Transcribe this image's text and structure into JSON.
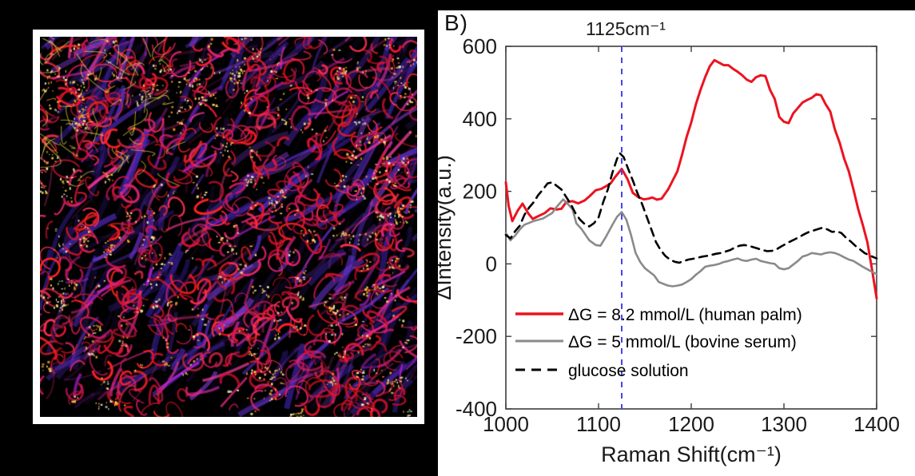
{
  "page": {
    "background": "#000000",
    "panel_label": "B)"
  },
  "microscopy_image": {
    "name": "skin-capillary-dark-field-image",
    "background": "#000000",
    "frame_color": "#ffffff",
    "purple_palette": [
      "#5a2ccc",
      "#6a35d8",
      "#4326b8",
      "#7e3bd4",
      "#3a1f9e",
      "#5530c8"
    ],
    "red_palette": [
      "#e41537",
      "#ff2222",
      "#cf1030",
      "#e0246e",
      "#c81858",
      "#ff3050",
      "#d51222"
    ],
    "magenta_palette": [
      "#d028a8",
      "#b41fd0",
      "#e33a8e",
      "#ff2e92"
    ],
    "yellow_palette": [
      "#ffefae",
      "#ffd94e",
      "#ffb52a",
      "#ff8c26",
      "#fff6d8",
      "#ffe36e"
    ]
  },
  "chart_data": {
    "type": "line",
    "annotation": {
      "text": "1125cm⁻¹",
      "x": 1125
    },
    "vline": {
      "x": 1125,
      "color": "#4545ee"
    },
    "xlabel": "Raman Shift(cm⁻¹)",
    "ylabel": "ΔIntensity(a.u.)",
    "xlim": [
      1000,
      1400
    ],
    "ylim": [
      -400,
      600
    ],
    "xticks": [
      1000,
      1100,
      1200,
      1300,
      1400
    ],
    "yticks": [
      -400,
      -200,
      0,
      200,
      400,
      600
    ],
    "grid": false,
    "legend_position": "inside-bottom-left",
    "axis_color": "#3d3d3d",
    "text_color": "#1a1a1a",
    "series": [
      {
        "name": "ΔG = 8.2 mmol/L (human palm)",
        "color": "#ec1320",
        "dash": "solid",
        "width": 3,
        "x": [
          1000,
          1003,
          1007,
          1013,
          1018,
          1024,
          1029,
          1036,
          1042,
          1048,
          1055,
          1060,
          1065,
          1072,
          1078,
          1085,
          1090,
          1097,
          1103,
          1108,
          1113,
          1118,
          1125,
          1131,
          1137,
          1143,
          1149,
          1154,
          1158,
          1163,
          1168,
          1175,
          1180,
          1185,
          1190,
          1195,
          1200,
          1205,
          1210,
          1215,
          1220,
          1225,
          1230,
          1235,
          1240,
          1245,
          1250,
          1255,
          1260,
          1265,
          1270,
          1275,
          1280,
          1285,
          1290,
          1295,
          1300,
          1305,
          1310,
          1315,
          1320,
          1325,
          1330,
          1335,
          1340,
          1345,
          1350,
          1355,
          1360,
          1365,
          1370,
          1375,
          1380,
          1385,
          1390,
          1395,
          1400
        ],
        "y": [
          225,
          160,
          118,
          148,
          166,
          140,
          124,
          133,
          140,
          153,
          150,
          152,
          170,
          173,
          167,
          175,
          186,
          203,
          207,
          214,
          222,
          240,
          262,
          235,
          196,
          184,
          178,
          180,
          183,
          177,
          180,
          205,
          230,
          255,
          300,
          350,
          390,
          440,
          480,
          515,
          545,
          562,
          555,
          548,
          548,
          538,
          530,
          520,
          508,
          502,
          515,
          520,
          518,
          480,
          455,
          405,
          392,
          388,
          415,
          430,
          445,
          452,
          458,
          468,
          465,
          440,
          420,
          370,
          335,
          290,
          255,
          205,
          152,
          108,
          60,
          -15,
          -95
        ]
      },
      {
        "name": "ΔG = 5 mmol/L (bovine serum)",
        "color": "#8a8a8a",
        "dash": "solid",
        "width": 2.6,
        "x": [
          1000,
          1005,
          1010,
          1015,
          1020,
          1030,
          1040,
          1050,
          1055,
          1062,
          1068,
          1072,
          1076,
          1082,
          1090,
          1097,
          1102,
          1108,
          1115,
          1120,
          1125,
          1130,
          1135,
          1140,
          1145,
          1150,
          1155,
          1160,
          1165,
          1170,
          1175,
          1180,
          1185,
          1190,
          1195,
          1200,
          1205,
          1210,
          1215,
          1220,
          1225,
          1230,
          1235,
          1240,
          1245,
          1250,
          1255,
          1260,
          1265,
          1270,
          1275,
          1280,
          1285,
          1290,
          1295,
          1300,
          1305,
          1310,
          1315,
          1320,
          1325,
          1330,
          1335,
          1340,
          1345,
          1350,
          1355,
          1360,
          1365,
          1370,
          1375,
          1380,
          1385,
          1390,
          1395,
          1400
        ],
        "y": [
          85,
          65,
          78,
          95,
          108,
          118,
          125,
          140,
          158,
          178,
          162,
          150,
          112,
          95,
          65,
          52,
          50,
          75,
          108,
          130,
          143,
          122,
          80,
          30,
          5,
          -12,
          -22,
          -32,
          -50,
          -55,
          -60,
          -62,
          -60,
          -57,
          -50,
          -42,
          -30,
          -20,
          -8,
          -5,
          -3,
          0,
          5,
          8,
          12,
          15,
          10,
          8,
          12,
          14,
          8,
          5,
          2,
          0,
          -12,
          -15,
          -12,
          -2,
          8,
          20,
          24,
          30,
          28,
          26,
          30,
          32,
          30,
          25,
          18,
          12,
          8,
          0,
          -8,
          -15,
          -22,
          -28
        ]
      },
      {
        "name": "glucose solution",
        "color": "#000000",
        "dash": "dashed",
        "width": 2.6,
        "x": [
          1000,
          1005,
          1010,
          1015,
          1020,
          1025,
          1030,
          1035,
          1040,
          1045,
          1050,
          1055,
          1060,
          1065,
          1070,
          1075,
          1080,
          1085,
          1090,
          1095,
          1100,
          1105,
          1110,
          1115,
          1120,
          1123,
          1127,
          1132,
          1137,
          1142,
          1147,
          1152,
          1157,
          1162,
          1167,
          1172,
          1177,
          1182,
          1187,
          1192,
          1197,
          1202,
          1207,
          1212,
          1217,
          1222,
          1227,
          1232,
          1237,
          1242,
          1247,
          1252,
          1257,
          1262,
          1267,
          1272,
          1277,
          1282,
          1287,
          1292,
          1297,
          1302,
          1307,
          1312,
          1317,
          1322,
          1327,
          1332,
          1337,
          1342,
          1347,
          1352,
          1357,
          1362,
          1367,
          1372,
          1377,
          1382,
          1387,
          1392,
          1397,
          1400
        ],
        "y": [
          80,
          70,
          90,
          105,
          135,
          155,
          170,
          190,
          205,
          222,
          225,
          215,
          205,
          185,
          165,
          140,
          122,
          110,
          103,
          112,
          128,
          170,
          205,
          252,
          290,
          305,
          295,
          262,
          230,
          195,
          165,
          130,
          95,
          60,
          38,
          22,
          12,
          6,
          3,
          8,
          12,
          14,
          17,
          20,
          22,
          25,
          28,
          30,
          34,
          38,
          45,
          50,
          52,
          50,
          46,
          42,
          38,
          35,
          36,
          40,
          48,
          55,
          62,
          68,
          75,
          82,
          88,
          92,
          96,
          100,
          95,
          88,
          90,
          85,
          72,
          62,
          50,
          40,
          30,
          24,
          18,
          15
        ]
      }
    ]
  }
}
